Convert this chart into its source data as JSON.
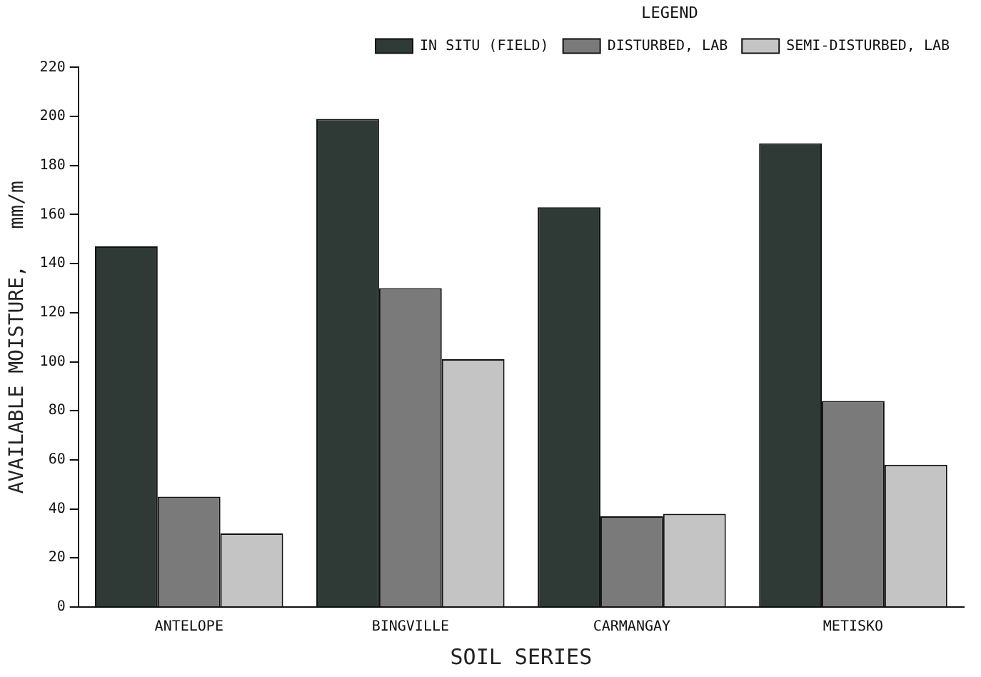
{
  "chart_data": {
    "type": "bar",
    "xlabel": "SOIL SERIES",
    "ylabel": "AVAILABLE MOISTURE,   mm/m",
    "legend_title": "LEGEND",
    "categories": [
      "ANTELOPE",
      "BINGVILLE",
      "CARMANGAY",
      "METISKO"
    ],
    "series": [
      {
        "name": "IN SITU (FIELD)",
        "color": "#2f3a36",
        "values": [
          147,
          199,
          163,
          189
        ]
      },
      {
        "name": "DISTURBED, LAB",
        "color": "#7a7a7a",
        "values": [
          45,
          130,
          37,
          84
        ]
      },
      {
        "name": "SEMI-DISTURBED, LAB",
        "color": "#c4c4c4",
        "values": [
          30,
          101,
          38,
          58
        ]
      }
    ],
    "ylim": [
      0,
      220
    ],
    "yticks": [
      0,
      20,
      40,
      60,
      80,
      100,
      120,
      140,
      160,
      180,
      200,
      220
    ],
    "grid": false,
    "legend": "top right"
  }
}
